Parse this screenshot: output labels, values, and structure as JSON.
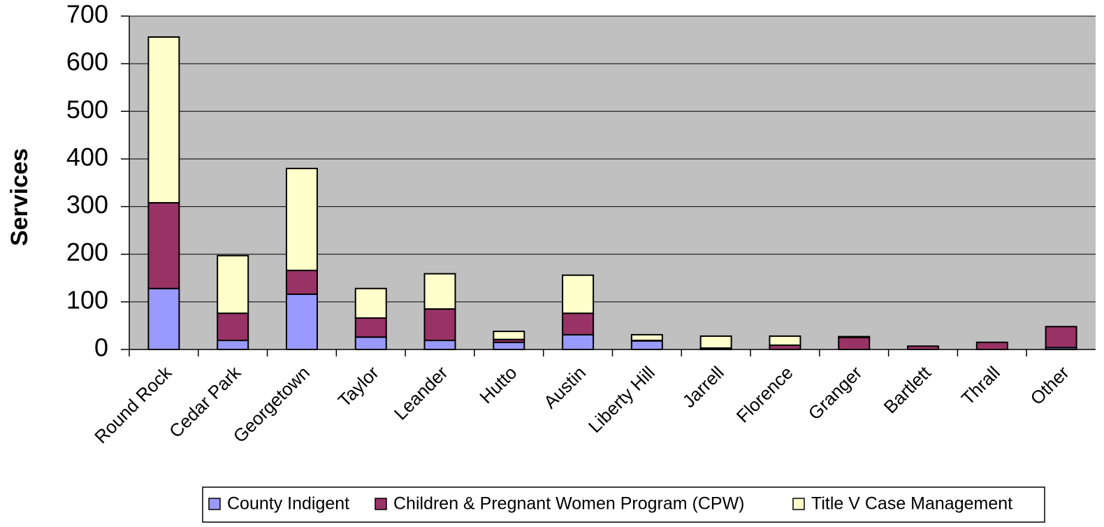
{
  "chart_data": {
    "type": "bar",
    "stacked": true,
    "y_label": "Services",
    "categories": [
      "Round Rock",
      "Cedar Park",
      "Georgetown",
      "Taylor",
      "Leander",
      "Hutto",
      "Austin",
      "Liberty Hill",
      "Jarrell",
      "Florence",
      "Granger",
      "Bartlett",
      "Thrall",
      "Other"
    ],
    "series": [
      {
        "name": "County Indigent",
        "color": "#9999ff",
        "values": [
          128,
          19,
          116,
          26,
          19,
          15,
          31,
          18,
          0,
          0,
          0,
          0,
          0,
          4
        ]
      },
      {
        "name": "Children & Pregnant Women Program (CPW)",
        "color": "#993366",
        "values": [
          180,
          57,
          50,
          40,
          66,
          6,
          45,
          1,
          3,
          9,
          25,
          7,
          15,
          44
        ]
      },
      {
        "name": "Title V Case Management",
        "color": "#ffffcc",
        "values": [
          348,
          121,
          214,
          62,
          74,
          17,
          80,
          12,
          25,
          19,
          2,
          0,
          0,
          0
        ]
      }
    ],
    "ylim": [
      0,
      700
    ],
    "yticks": [
      0,
      100,
      200,
      300,
      400,
      500,
      600,
      700
    ],
    "grid": true,
    "legend": "bottom",
    "plot_background": "#c0c0c0"
  }
}
